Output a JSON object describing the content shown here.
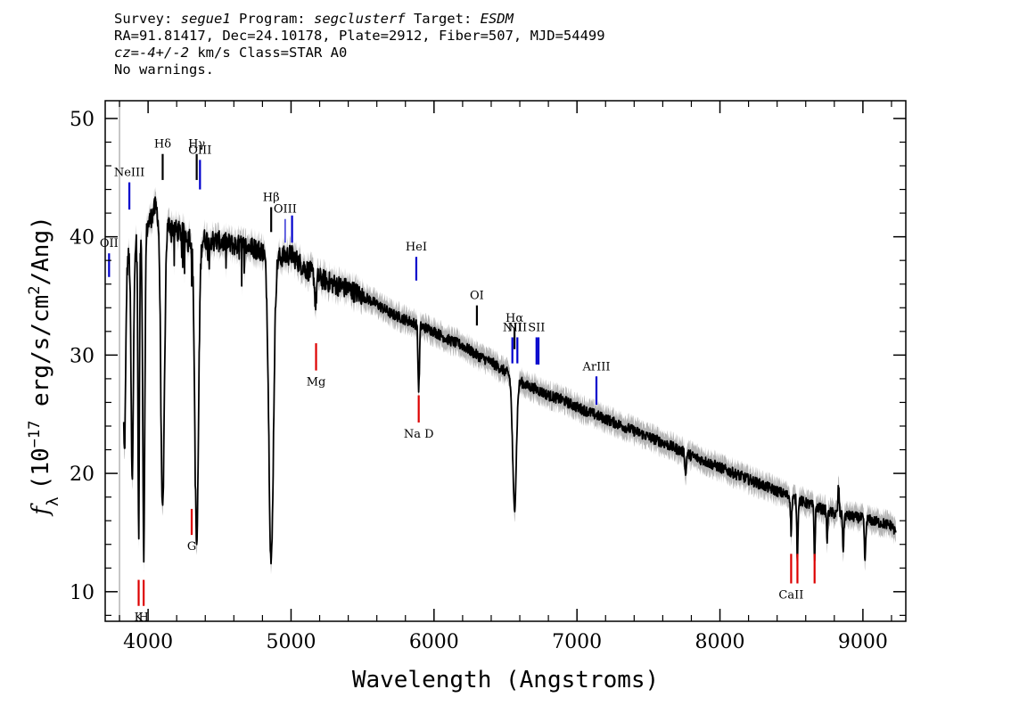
{
  "header": {
    "line1": {
      "survey_label": "Survey: ",
      "survey": "segue1",
      "program_label": " Program: ",
      "program": "segclusterf",
      "target_label": " Target: ",
      "target": "ESDM"
    },
    "line2": "RA=91.81417, Dec=24.10178, Plate=2912, Fiber=507, MJD=54499",
    "line3": {
      "cz_label": "cz=",
      "cz_value": "-4+/-2",
      "cz_rest": " km/s Class=STAR A0"
    },
    "line4": "No warnings."
  },
  "chart_data": {
    "type": "line",
    "xlabel": "Wavelength (Angstroms)",
    "ylabel": "f_λ (10^-17 erg/s/cm^2/Ang)",
    "ylabel_parts": {
      "f": "f",
      "sub": "λ",
      "pre": "(10",
      "exp": "−17",
      "mid": " erg/s/cm",
      "exp2": "2",
      "post": "/Ang)"
    },
    "xlim": [
      3700,
      9300
    ],
    "ylim": [
      7.5,
      51.5
    ],
    "x_ticks": [
      4000,
      5000,
      6000,
      7000,
      8000,
      9000
    ],
    "y_ticks": [
      10,
      20,
      30,
      40,
      50
    ],
    "colors": {
      "spectrum": "#000000",
      "error_band": "#b4b4b4",
      "emission_line": "#0000cc",
      "absorption_line": "#dd0000",
      "stellar_line": "#000000"
    },
    "spectrum": {
      "name": "flux",
      "continuum": [
        [
          3800,
          34
        ],
        [
          3850,
          38
        ],
        [
          3900,
          39.5
        ],
        [
          3950,
          40
        ],
        [
          4000,
          41
        ],
        [
          4050,
          42.5
        ],
        [
          4100,
          41.5
        ],
        [
          4200,
          40.5
        ],
        [
          4300,
          40
        ],
        [
          4400,
          39.8
        ],
        [
          4500,
          39.6
        ],
        [
          4600,
          39.3
        ],
        [
          4700,
          39.2
        ],
        [
          4800,
          38.8
        ],
        [
          4900,
          38.2
        ],
        [
          5000,
          38.5
        ],
        [
          5100,
          37.3
        ],
        [
          5200,
          36.5
        ],
        [
          5300,
          36
        ],
        [
          5400,
          35.6
        ],
        [
          5500,
          35
        ],
        [
          5600,
          34.3
        ],
        [
          5700,
          33.5
        ],
        [
          5800,
          33
        ],
        [
          5900,
          32.5
        ],
        [
          6000,
          32
        ],
        [
          6100,
          31.3
        ],
        [
          6200,
          30.8
        ],
        [
          6300,
          30
        ],
        [
          6400,
          29.4
        ],
        [
          6500,
          28.6
        ],
        [
          6600,
          27.8
        ],
        [
          6650,
          27.4
        ],
        [
          6700,
          27.2
        ],
        [
          6800,
          26.6
        ],
        [
          6900,
          26.2
        ],
        [
          7000,
          25.6
        ],
        [
          7200,
          24.6
        ],
        [
          7400,
          23.6
        ],
        [
          7600,
          22.6
        ],
        [
          7800,
          21.5
        ],
        [
          8000,
          20.5
        ],
        [
          8200,
          19.5
        ],
        [
          8400,
          18.5
        ],
        [
          8600,
          17.5
        ],
        [
          8800,
          16.6
        ],
        [
          9000,
          16.2
        ],
        [
          9200,
          15.6
        ],
        [
          9230,
          15
        ]
      ],
      "features": [
        {
          "x": 3835,
          "depth": 15,
          "width": 8
        },
        {
          "x": 3889,
          "depth": 20,
          "width": 8
        },
        {
          "x": 3934,
          "depth": 25,
          "width": 5
        },
        {
          "x": 3970,
          "depth": 27,
          "width": 7
        },
        {
          "x": 4102,
          "depth": 25,
          "width": 12
        },
        {
          "x": 4340,
          "depth": 26,
          "width": 13
        },
        {
          "x": 4861,
          "depth": 26,
          "width": 16
        },
        {
          "x": 5172,
          "depth": 2.5,
          "width": 6
        },
        {
          "x": 5890,
          "depth": 3.5,
          "width": 4
        },
        {
          "x": 5896,
          "depth": 3.5,
          "width": 4
        },
        {
          "x": 6563,
          "depth": 11,
          "width": 13
        },
        {
          "x": 7760,
          "depth": 2,
          "width": 4
        },
        {
          "x": 8498,
          "depth": 3,
          "width": 4
        },
        {
          "x": 8542,
          "depth": 5,
          "width": 4
        },
        {
          "x": 8662,
          "depth": 4.5,
          "width": 4
        },
        {
          "x": 8750,
          "depth": 2.5,
          "width": 4
        },
        {
          "x": 8863,
          "depth": 3,
          "width": 4
        },
        {
          "x": 9015,
          "depth": 3.5,
          "width": 5
        },
        {
          "x": 8830,
          "depth": -2.5,
          "width": 4
        }
      ]
    },
    "emission_lines": [
      {
        "label": "OII",
        "x": 3727,
        "y1": 36.6,
        "y2": 38.6,
        "thick": true
      },
      {
        "label": "NeIII",
        "x": 3869,
        "y1": 42.3,
        "y2": 44.6,
        "thick": true
      },
      {
        "label": "OIII",
        "x": 4363,
        "y1": 44,
        "y2": 46.5,
        "thick": true
      },
      {
        "label": "OIII",
        "x": 4959,
        "y1": 39.5,
        "y2": 41.5,
        "thick": false
      },
      {
        "label": "",
        "x": 5007,
        "y1": 39.5,
        "y2": 41.8,
        "thick": true
      },
      {
        "label": "HeI",
        "x": 5876,
        "y1": 36.3,
        "y2": 38.3,
        "thick": true
      },
      {
        "label": "NII",
        "x": 6548,
        "y1": 29.3,
        "y2": 31.5,
        "thick": true
      },
      {
        "label": "NII",
        "x": 6583,
        "y1": 29.3,
        "y2": 31.5,
        "thick": true
      },
      {
        "label": "SII",
        "x": 6717,
        "y1": 29.2,
        "y2": 31.5,
        "thick": true
      },
      {
        "label": "",
        "x": 6731,
        "y1": 29.2,
        "y2": 31.5,
        "thick": true
      },
      {
        "label": "ArIII",
        "x": 7136,
        "y1": 25.8,
        "y2": 28.2,
        "thick": true
      }
    ],
    "stellar_lines": [
      {
        "label": "Hδ",
        "x": 4102,
        "y1": 44.8,
        "y2": 47
      },
      {
        "label": "Hγ",
        "x": 4340,
        "y1": 44.8,
        "y2": 47
      },
      {
        "label": "Hβ",
        "x": 4861,
        "y1": 40.4,
        "y2": 42.5
      },
      {
        "label": "OI",
        "x": 6300,
        "y1": 32.5,
        "y2": 34.2
      },
      {
        "label": "Hα",
        "x": 6563,
        "y1": 30.5,
        "y2": 32.3
      }
    ],
    "absorption_lines": [
      {
        "label": "K",
        "x": 3934,
        "y1": 8.8,
        "y2": 11
      },
      {
        "label": "H",
        "x": 3969,
        "y1": 8.8,
        "y2": 11
      },
      {
        "label": "G",
        "x": 4305,
        "y1": 14.8,
        "y2": 17
      },
      {
        "label": "Mg",
        "x": 5175,
        "y1": 28.7,
        "y2": 31
      },
      {
        "label": "Na D",
        "x": 5893,
        "y1": 24.3,
        "y2": 26.6
      },
      {
        "label": "CaII",
        "x": 8498,
        "y1": 10.7,
        "y2": 13.2
      },
      {
        "label": "",
        "x": 8542,
        "y1": 10.7,
        "y2": 13.2
      },
      {
        "label": "",
        "x": 8662,
        "y1": 10.7,
        "y2": 13.2
      }
    ]
  }
}
